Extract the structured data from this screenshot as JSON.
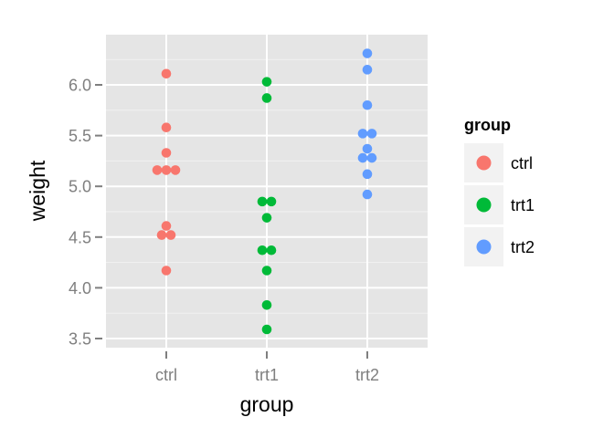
{
  "chart_data": {
    "type": "scatter",
    "subtype": "dotplot (stacked, centered)",
    "title": "",
    "xlabel": "group",
    "ylabel": "weight",
    "categories": [
      "ctrl",
      "trt1",
      "trt2"
    ],
    "ylim": [
      3.42,
      6.47
    ],
    "yticks": [
      3.5,
      4.0,
      4.5,
      5.0,
      5.5,
      6.0
    ],
    "ytick_labels": [
      "3.5",
      "4.0",
      "4.5",
      "5.0",
      "5.5",
      "6.0"
    ],
    "grid": true,
    "legend_position": "right",
    "legend_title": "group",
    "series": [
      {
        "name": "ctrl",
        "color": "#F8766D",
        "values": [
          4.17,
          5.58,
          5.18,
          6.11,
          4.5,
          4.61,
          5.17,
          4.53,
          5.33,
          5.14
        ]
      },
      {
        "name": "trt1",
        "color": "#00BA38",
        "values": [
          4.81,
          4.17,
          4.41,
          3.59,
          5.87,
          3.83,
          6.03,
          4.89,
          4.32,
          4.69
        ]
      },
      {
        "name": "trt2",
        "color": "#619CFF",
        "values": [
          6.31,
          5.12,
          5.54,
          5.5,
          5.37,
          5.29,
          4.92,
          6.15,
          5.8,
          5.26
        ]
      }
    ],
    "stacked_rows": [
      {
        "group": "ctrl",
        "y": 6.11,
        "count": 1
      },
      {
        "group": "ctrl",
        "y": 5.58,
        "count": 1
      },
      {
        "group": "ctrl",
        "y": 5.33,
        "count": 1
      },
      {
        "group": "ctrl",
        "y": 5.16,
        "count": 3
      },
      {
        "group": "ctrl",
        "y": 4.61,
        "count": 1
      },
      {
        "group": "ctrl",
        "y": 4.52,
        "count": 2
      },
      {
        "group": "ctrl",
        "y": 4.17,
        "count": 1
      },
      {
        "group": "trt1",
        "y": 6.03,
        "count": 1
      },
      {
        "group": "trt1",
        "y": 5.87,
        "count": 1
      },
      {
        "group": "trt1",
        "y": 4.85,
        "count": 2
      },
      {
        "group": "trt1",
        "y": 4.69,
        "count": 1
      },
      {
        "group": "trt1",
        "y": 4.37,
        "count": 2
      },
      {
        "group": "trt1",
        "y": 4.17,
        "count": 1
      },
      {
        "group": "trt1",
        "y": 3.83,
        "count": 1
      },
      {
        "group": "trt1",
        "y": 3.59,
        "count": 1
      },
      {
        "group": "trt2",
        "y": 6.31,
        "count": 1
      },
      {
        "group": "trt2",
        "y": 6.15,
        "count": 1
      },
      {
        "group": "trt2",
        "y": 5.8,
        "count": 1
      },
      {
        "group": "trt2",
        "y": 5.52,
        "count": 2
      },
      {
        "group": "trt2",
        "y": 5.37,
        "count": 1
      },
      {
        "group": "trt2",
        "y": 5.28,
        "count": 2
      },
      {
        "group": "trt2",
        "y": 5.12,
        "count": 1
      },
      {
        "group": "trt2",
        "y": 4.92,
        "count": 1
      }
    ]
  },
  "axes": {
    "x_title": "group",
    "y_title": "weight"
  },
  "legend": {
    "title": "group",
    "items": [
      {
        "label": "ctrl",
        "color": "#F8766D"
      },
      {
        "label": "trt1",
        "color": "#00BA38"
      },
      {
        "label": "trt2",
        "color": "#619CFF"
      }
    ]
  },
  "theme": {
    "panel_bg": "#E5E5E5",
    "grid_major": "#FFFFFF",
    "grid_minor": "#F2F2F2",
    "tick_color": "#7F7F7F",
    "legend_key_bg": "#F2F2F2"
  }
}
